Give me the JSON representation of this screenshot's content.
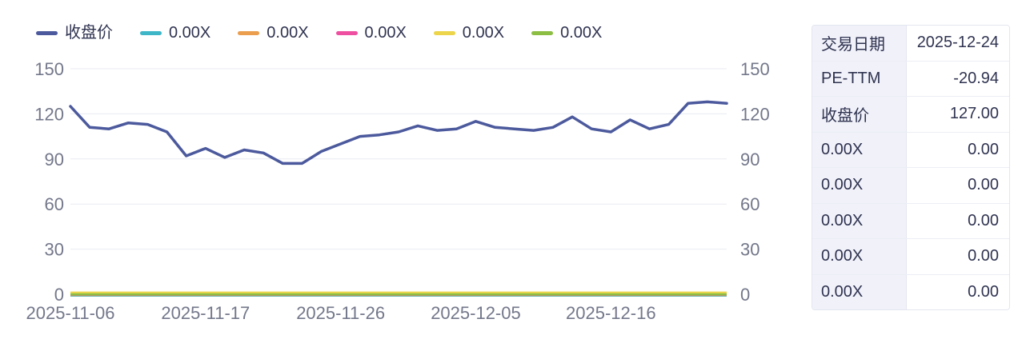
{
  "legend": {
    "items": [
      {
        "label": "收盘价",
        "color": "#4c5a9d"
      },
      {
        "label": "0.00X",
        "color": "#3eb6c8"
      },
      {
        "label": "0.00X",
        "color": "#eb9e4d"
      },
      {
        "label": "0.00X",
        "color": "#ee4fa0"
      },
      {
        "label": "0.00X",
        "color": "#ecd54a"
      },
      {
        "label": "0.00X",
        "color": "#8cbe43"
      }
    ]
  },
  "chart_data": {
    "type": "line",
    "title": "",
    "xlabel": "",
    "ylabel": "",
    "ylim": [
      0,
      150
    ],
    "y_ticks": [
      0,
      30,
      60,
      90,
      120,
      150
    ],
    "dual_y_axis": true,
    "grid": true,
    "legend_position": "top-left",
    "x": [
      "2025-11-06",
      "2025-11-07",
      "2025-11-10",
      "2025-11-11",
      "2025-11-12",
      "2025-11-13",
      "2025-11-14",
      "2025-11-17",
      "2025-11-18",
      "2025-11-19",
      "2025-11-20",
      "2025-11-21",
      "2025-11-24",
      "2025-11-25",
      "2025-11-26",
      "2025-11-27",
      "2025-11-28",
      "2025-12-01",
      "2025-12-02",
      "2025-12-03",
      "2025-12-04",
      "2025-12-05",
      "2025-12-08",
      "2025-12-09",
      "2025-12-10",
      "2025-12-11",
      "2025-12-12",
      "2025-12-15",
      "2025-12-16",
      "2025-12-17",
      "2025-12-18",
      "2025-12-19",
      "2025-12-22",
      "2025-12-23",
      "2025-12-24"
    ],
    "x_tick_labels": [
      "2025-11-06",
      "2025-11-17",
      "2025-11-26",
      "2025-12-05",
      "2025-12-16"
    ],
    "x_tick_positions": [
      0,
      7,
      14,
      21,
      28
    ],
    "series": [
      {
        "name": "0.00X",
        "color": "#3eb6c8",
        "flat": true,
        "values": 0
      },
      {
        "name": "0.00X",
        "color": "#eb9e4d",
        "flat": true,
        "values": 0
      },
      {
        "name": "0.00X",
        "color": "#ee4fa0",
        "flat": true,
        "values": 0
      },
      {
        "name": "0.00X",
        "color": "#ecd54a",
        "flat": true,
        "values": 0
      },
      {
        "name": "0.00X",
        "color": "#8cbe43",
        "flat": true,
        "values": 0
      },
      {
        "name": "收盘价",
        "color": "#4c5a9d",
        "values": [
          125,
          111,
          110,
          114,
          113,
          108,
          92,
          97,
          91,
          96,
          94,
          87,
          87,
          95,
          100,
          105,
          106,
          108,
          112,
          109,
          110,
          115,
          111,
          110,
          109,
          111,
          118,
          110,
          108,
          116,
          110,
          113,
          127,
          128,
          127
        ]
      }
    ]
  },
  "table": {
    "rows": [
      {
        "label": "交易日期",
        "value": "2025-12-24"
      },
      {
        "label": "PE-TTM",
        "value": "-20.94"
      },
      {
        "label": "收盘价",
        "value": "127.00"
      },
      {
        "label": "0.00X",
        "value": "0.00"
      },
      {
        "label": "0.00X",
        "value": "0.00"
      },
      {
        "label": "0.00X",
        "value": "0.00"
      },
      {
        "label": "0.00X",
        "value": "0.00"
      },
      {
        "label": "0.00X",
        "value": "0.00"
      }
    ]
  },
  "style": {
    "axis_text_color": "#73778a",
    "grid_color": "#e9ebf3",
    "axis_line_color": "#8f96aa",
    "table_label_bg": "#f0f1f9",
    "table_border": "#e4e6f0",
    "text_color": "#2f3350"
  }
}
